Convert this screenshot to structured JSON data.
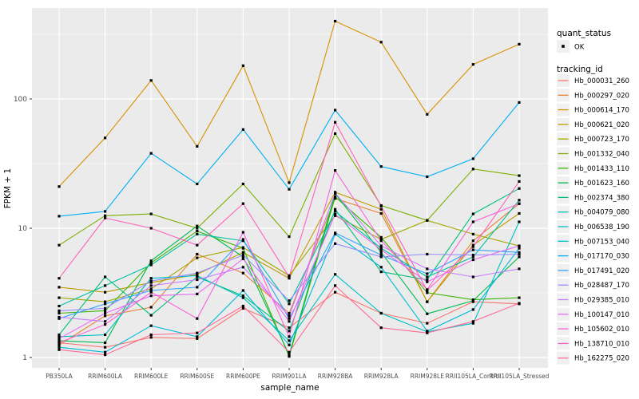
{
  "figure": {
    "background": "#FFFFFF"
  },
  "panel": {
    "background": "#EBEBEB",
    "grid_color": "#FFFFFF",
    "tick_color": "#333333",
    "tick_label_color": "#4D4D4D",
    "point_color": "#000000",
    "legend_key_bg": "#F0F0F0"
  },
  "legend": {
    "quant_status": {
      "title": "quant_status",
      "items": [
        {
          "label": "OK",
          "marker": "black-point"
        }
      ]
    },
    "tracking_id": {
      "title": "tracking_id"
    }
  },
  "chart_data": {
    "type": "line",
    "title": "",
    "xlabel": "sample_name",
    "ylabel": "FPKM + 1",
    "y_scale": "log10",
    "ylim": [
      1,
      450
    ],
    "y_ticks": [
      1,
      10,
      100
    ],
    "y_tick_labels": [
      "1",
      "10",
      "100"
    ],
    "y_minor_gridlines": [
      3.1623,
      31.623,
      316.23
    ],
    "grid": true,
    "legend_position": "right",
    "x_categories": [
      "PB350LA",
      "RRIM600LA",
      "RRIM600LE",
      "RRIM600SE",
      "RRIM600PE",
      "RRIM901LA",
      "RRIM928BA",
      "RRIM928LA",
      "RRIM928LE",
      "RRII105LA_Control",
      "RRII105LA_Stressed"
    ],
    "series": [
      {
        "name": "Hb_000031_260",
        "color": "#F8766D",
        "values": [
          1.3,
          1.2,
          1.43,
          1.4,
          2.4,
          1.7,
          3.2,
          2.2,
          1.84,
          2.7,
          2.6
        ]
      },
      {
        "name": "Hb_000297_020",
        "color": "#EA8331",
        "values": [
          1.25,
          2.1,
          2.45,
          6.3,
          4.5,
          2.2,
          17.0,
          13.0,
          2.7,
          8.0,
          15.5
        ]
      },
      {
        "name": "Hb_000614_170",
        "color": "#D89000",
        "values": [
          21.0,
          50.0,
          139,
          43.0,
          181,
          22.5,
          400,
          275,
          76.0,
          185,
          265
        ]
      },
      {
        "name": "Hb_000621_020",
        "color": "#C09B00",
        "values": [
          3.5,
          3.2,
          3.8,
          4.4,
          6.5,
          4.1,
          19.0,
          14.0,
          2.7,
          7.4,
          13.0
        ]
      },
      {
        "name": "Hb_000723_170",
        "color": "#A3A500",
        "values": [
          2.9,
          2.7,
          3.4,
          5.9,
          7.1,
          4.3,
          12.5,
          8.2,
          11.5,
          9.0,
          7.3
        ]
      },
      {
        "name": "Hb_001332_040",
        "color": "#7CAE00",
        "values": [
          7.4,
          12.5,
          12.9,
          10.0,
          22.0,
          8.6,
          54.0,
          15.0,
          11.5,
          28.7,
          25.5
        ]
      },
      {
        "name": "Hb_001433_110",
        "color": "#39B600",
        "values": [
          2.2,
          2.3,
          5.4,
          9.5,
          7.0,
          1.02,
          17.5,
          8.5,
          3.17,
          2.8,
          2.9
        ]
      },
      {
        "name": "Hb_001623_160",
        "color": "#00BB4E",
        "values": [
          1.35,
          1.3,
          5.6,
          10.4,
          6.0,
          1.05,
          18.5,
          6.5,
          2.18,
          2.75,
          6.0
        ]
      },
      {
        "name": "Hb_002374_380",
        "color": "#00BF7D",
        "values": [
          1.5,
          4.2,
          2.12,
          4.2,
          3.0,
          1.6,
          14.0,
          4.6,
          4.0,
          12.9,
          20.3
        ]
      },
      {
        "name": "Hb_004079_080",
        "color": "#00C1A3",
        "values": [
          2.5,
          3.6,
          5.2,
          9.0,
          8.0,
          2.6,
          13.5,
          7.0,
          4.2,
          6.0,
          16.5
        ]
      },
      {
        "name": "Hb_006538_190",
        "color": "#00BFC4",
        "values": [
          1.45,
          1.5,
          4.1,
          4.3,
          2.9,
          1.35,
          4.4,
          2.2,
          1.58,
          1.84,
          11.2
        ]
      },
      {
        "name": "Hb_007153_040",
        "color": "#00BBDA",
        "values": [
          1.2,
          1.1,
          1.76,
          1.45,
          3.3,
          1.25,
          9.0,
          5.0,
          1.6,
          2.35,
          7.0
        ]
      },
      {
        "name": "Hb_017170_030",
        "color": "#00B0F6",
        "values": [
          12.4,
          13.5,
          38.0,
          22.0,
          58.0,
          20.0,
          82.0,
          30.0,
          25.0,
          34.5,
          94.0
        ]
      },
      {
        "name": "Hb_017491_020",
        "color": "#35A2FF",
        "values": [
          2.0,
          2.6,
          3.3,
          3.5,
          8.2,
          2.0,
          9.2,
          6.2,
          4.45,
          6.8,
          6.5
        ]
      },
      {
        "name": "Hb_028487_170",
        "color": "#9590FF",
        "values": [
          2.3,
          2.4,
          3.9,
          4.5,
          6.2,
          2.75,
          7.6,
          6.0,
          6.3,
          6.2,
          6.3
        ]
      },
      {
        "name": "Hb_029385_010",
        "color": "#C77CFF",
        "values": [
          2.05,
          1.9,
          3.6,
          4.0,
          5.0,
          2.1,
          18.7,
          7.3,
          4.85,
          4.2,
          4.85
        ]
      },
      {
        "name": "Hb_100147_010",
        "color": "#E76BF3",
        "values": [
          1.4,
          2.2,
          3.0,
          3.1,
          5.8,
          1.9,
          12.8,
          6.8,
          3.85,
          5.7,
          7.3
        ]
      },
      {
        "name": "Hb_105602_010",
        "color": "#FA62DB",
        "values": [
          1.3,
          1.8,
          3.2,
          2.0,
          9.3,
          1.45,
          28.0,
          8.0,
          3.35,
          11.2,
          15.5
        ]
      },
      {
        "name": "Hb_138710_010",
        "color": "#FF62BC",
        "values": [
          4.1,
          12.0,
          10.0,
          7.4,
          15.5,
          4.2,
          66.0,
          14.8,
          3.3,
          7.2,
          23.0
        ]
      },
      {
        "name": "Hb_162275_020",
        "color": "#FF6A98",
        "values": [
          1.15,
          1.05,
          1.5,
          1.55,
          2.5,
          1.1,
          3.6,
          1.7,
          1.55,
          1.9,
          2.63
        ]
      }
    ]
  }
}
